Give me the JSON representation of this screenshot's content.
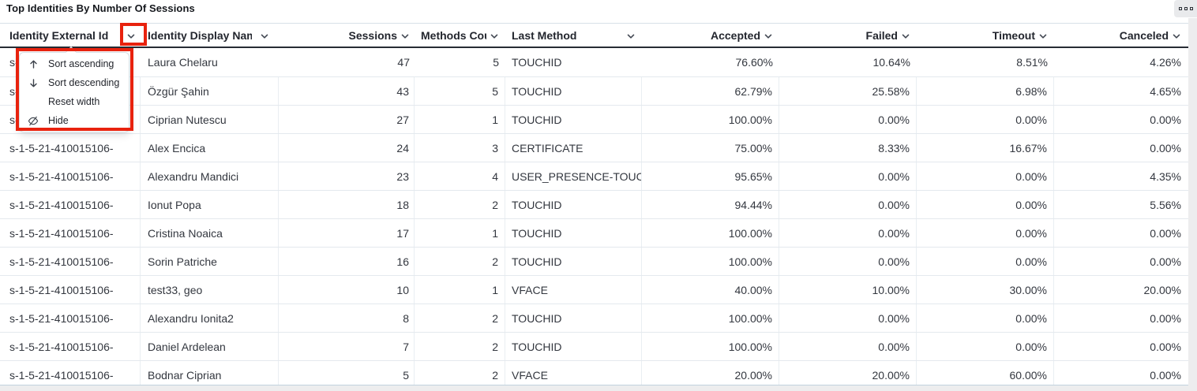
{
  "page": {
    "title": "Top Identities By Number Of Sessions"
  },
  "toolbar": {
    "options_icon": "square-dots-menu"
  },
  "table": {
    "headers": [
      {
        "id": "identity-external-id",
        "label": "Identity External Id"
      },
      {
        "id": "identity-display-name",
        "label": "Identity Display Name"
      },
      {
        "id": "sessions",
        "label": "Sessions"
      },
      {
        "id": "methods-count",
        "label": "Methods Count"
      },
      {
        "id": "last-method",
        "label": "Last Method"
      },
      {
        "id": "accepted",
        "label": "Accepted"
      },
      {
        "id": "failed",
        "label": "Failed"
      },
      {
        "id": "timeout",
        "label": "Timeout"
      },
      {
        "id": "canceled",
        "label": "Canceled"
      }
    ],
    "rows": [
      [
        "s-1-5-21-410015106-",
        "Laura Chelaru",
        "47",
        "5",
        "TOUCHID",
        "76.60%",
        "10.64%",
        "8.51%",
        "4.26%"
      ],
      [
        "s-1-5-21-410015106-",
        "Özgür Şahin",
        "43",
        "5",
        "TOUCHID",
        "62.79%",
        "25.58%",
        "6.98%",
        "4.65%"
      ],
      [
        "s-1-5-21-410015106-",
        "Ciprian Nutescu",
        "27",
        "1",
        "TOUCHID",
        "100.00%",
        "0.00%",
        "0.00%",
        "0.00%"
      ],
      [
        "s-1-5-21-410015106-",
        "Alex Encica",
        "24",
        "3",
        "CERTIFICATE",
        "75.00%",
        "8.33%",
        "16.67%",
        "0.00%"
      ],
      [
        "s-1-5-21-410015106-",
        "Alexandru Mandici",
        "23",
        "4",
        "USER_PRESENCE-TOUC",
        "95.65%",
        "0.00%",
        "0.00%",
        "4.35%"
      ],
      [
        "s-1-5-21-410015106-",
        "Ionut Popa",
        "18",
        "2",
        "TOUCHID",
        "94.44%",
        "0.00%",
        "0.00%",
        "5.56%"
      ],
      [
        "s-1-5-21-410015106-",
        "Cristina Noaica",
        "17",
        "1",
        "TOUCHID",
        "100.00%",
        "0.00%",
        "0.00%",
        "0.00%"
      ],
      [
        "s-1-5-21-410015106-",
        "Sorin Patriche",
        "16",
        "2",
        "TOUCHID",
        "100.00%",
        "0.00%",
        "0.00%",
        "0.00%"
      ],
      [
        "s-1-5-21-410015106-",
        "test33, geo",
        "10",
        "1",
        "VFACE",
        "40.00%",
        "10.00%",
        "30.00%",
        "20.00%"
      ],
      [
        "s-1-5-21-410015106-",
        "Alexandru Ionita2",
        "8",
        "2",
        "TOUCHID",
        "100.00%",
        "0.00%",
        "0.00%",
        "0.00%"
      ],
      [
        "s-1-5-21-410015106-",
        "Daniel Ardelean",
        "7",
        "2",
        "TOUCHID",
        "100.00%",
        "0.00%",
        "0.00%",
        "0.00%"
      ],
      [
        "s-1-5-21-410015106-",
        "Bodnar Ciprian",
        "5",
        "2",
        "VFACE",
        "20.00%",
        "20.00%",
        "60.00%",
        "0.00%"
      ]
    ]
  },
  "column_menu": {
    "items": [
      {
        "icon": "arrow-up-icon",
        "label": "Sort ascending"
      },
      {
        "icon": "arrow-down-icon",
        "label": "Sort descending"
      },
      {
        "icon": "",
        "label": "Reset width"
      },
      {
        "icon": "eye-off-icon",
        "label": "Hide"
      }
    ]
  },
  "annotations": {
    "highlight_color": "#e8220e",
    "boxes": [
      "column-chevron",
      "column-menu"
    ]
  }
}
